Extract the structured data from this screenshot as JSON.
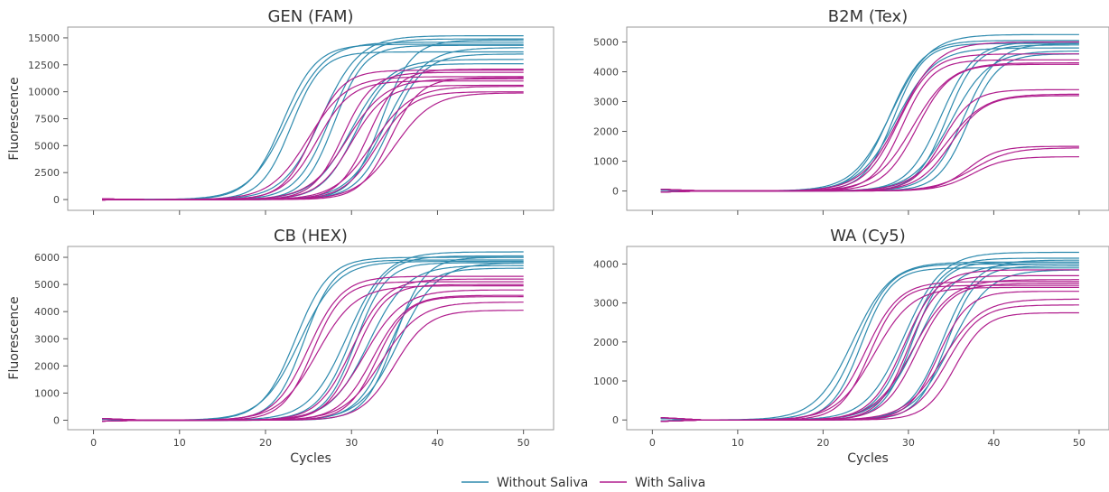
{
  "colors": {
    "without": "#2e8aae",
    "with": "#b01d8d"
  },
  "legend": {
    "without_label": "Without Saliva",
    "with_label": "With Saliva"
  },
  "chart_data": [
    {
      "type": "line",
      "title": "GEN (FAM)",
      "xlabel": "",
      "ylabel": "Fluorescence",
      "xlim": [
        1,
        50
      ],
      "ylim": [
        -1000,
        16000
      ],
      "xticks": [
        0,
        10,
        20,
        30,
        40,
        50
      ],
      "yticks": [
        0,
        2500,
        5000,
        7500,
        10000,
        12500,
        15000
      ],
      "show_xtick_labels": false,
      "series": [
        {
          "group": "without",
          "plateau": 14600,
          "midpoint": 22.5
        },
        {
          "group": "without",
          "plateau": 14400,
          "midpoint": 22.0
        },
        {
          "group": "without",
          "plateau": 13700,
          "midpoint": 23.0
        },
        {
          "group": "without",
          "plateau": 15200,
          "midpoint": 26.5
        },
        {
          "group": "without",
          "plateau": 14900,
          "midpoint": 27.5
        },
        {
          "group": "without",
          "plateau": 14300,
          "midpoint": 28.0
        },
        {
          "group": "without",
          "plateau": 13000,
          "midpoint": 30.0
        },
        {
          "group": "without",
          "plateau": 12600,
          "midpoint": 30.5
        },
        {
          "group": "without",
          "plateau": 14800,
          "midpoint": 33.5
        },
        {
          "group": "without",
          "plateau": 14100,
          "midpoint": 34.0
        },
        {
          "group": "without",
          "plateau": 13500,
          "midpoint": 34.5
        },
        {
          "group": "with",
          "plateau": 12000,
          "midpoint": 25.5
        },
        {
          "group": "with",
          "plateau": 11400,
          "midpoint": 25.0
        },
        {
          "group": "with",
          "plateau": 11000,
          "midpoint": 26.0
        },
        {
          "group": "with",
          "plateau": 11800,
          "midpoint": 29.0
        },
        {
          "group": "with",
          "plateau": 11200,
          "midpoint": 29.5
        },
        {
          "group": "with",
          "plateau": 10600,
          "midpoint": 30.0
        },
        {
          "group": "with",
          "plateau": 12100,
          "midpoint": 32.0
        },
        {
          "group": "with",
          "plateau": 10500,
          "midpoint": 32.5
        },
        {
          "group": "with",
          "plateau": 10000,
          "midpoint": 33.0
        },
        {
          "group": "with",
          "plateau": 11300,
          "midpoint": 34.5
        },
        {
          "group": "with",
          "plateau": 9900,
          "midpoint": 35.0
        }
      ]
    },
    {
      "type": "line",
      "title": "B2M (Tex)",
      "xlabel": "",
      "ylabel": "",
      "xlim": [
        1,
        50
      ],
      "ylim": [
        -650,
        5500
      ],
      "xticks": [
        0,
        10,
        20,
        30,
        40,
        50
      ],
      "yticks": [
        0,
        1000,
        2000,
        3000,
        4000,
        5000
      ],
      "show_xtick_labels": false,
      "series": [
        {
          "group": "without",
          "plateau": 5250,
          "midpoint": 28.0
        },
        {
          "group": "without",
          "plateau": 5050,
          "midpoint": 27.8
        },
        {
          "group": "without",
          "plateau": 4950,
          "midpoint": 28.3
        },
        {
          "group": "without",
          "plateau": 4800,
          "midpoint": 28.6
        },
        {
          "group": "without",
          "plateau": 5000,
          "midpoint": 33.8
        },
        {
          "group": "without",
          "plateau": 4900,
          "midpoint": 34.5
        },
        {
          "group": "without",
          "plateau": 4700,
          "midpoint": 35.0
        },
        {
          "group": "without",
          "plateau": 4950,
          "midpoint": 36.5
        },
        {
          "group": "without",
          "plateau": 4600,
          "midpoint": 37.0
        },
        {
          "group": "with",
          "plateau": 5000,
          "midpoint": 29.0
        },
        {
          "group": "with",
          "plateau": 4600,
          "midpoint": 28.8
        },
        {
          "group": "with",
          "plateau": 4400,
          "midpoint": 29.3
        },
        {
          "group": "with",
          "plateau": 4300,
          "midpoint": 30.5
        },
        {
          "group": "with",
          "plateau": 4250,
          "midpoint": 31.0
        },
        {
          "group": "with",
          "plateau": 3400,
          "midpoint": 34.0
        },
        {
          "group": "with",
          "plateau": 3250,
          "midpoint": 34.5
        },
        {
          "group": "with",
          "plateau": 3200,
          "midpoint": 35.0
        },
        {
          "group": "with",
          "plateau": 1500,
          "midpoint": 37.0
        },
        {
          "group": "with",
          "plateau": 1450,
          "midpoint": 37.5
        },
        {
          "group": "with",
          "plateau": 1150,
          "midpoint": 37.5
        }
      ]
    },
    {
      "type": "line",
      "title": "CB (HEX)",
      "xlabel": "Cycles",
      "ylabel": "Fluorescence",
      "xlim": [
        1,
        50
      ],
      "ylim": [
        -350,
        6400
      ],
      "xticks": [
        0,
        10,
        20,
        30,
        40,
        50
      ],
      "yticks": [
        0,
        1000,
        2000,
        3000,
        4000,
        5000,
        6000
      ],
      "show_xtick_labels": true,
      "series": [
        {
          "group": "without",
          "plateau": 5850,
          "midpoint": 24.0
        },
        {
          "group": "without",
          "plateau": 6000,
          "midpoint": 23.5
        },
        {
          "group": "without",
          "plateau": 5900,
          "midpoint": 24.5
        },
        {
          "group": "without",
          "plateau": 6200,
          "midpoint": 29.5
        },
        {
          "group": "without",
          "plateau": 6050,
          "midpoint": 30.0
        },
        {
          "group": "without",
          "plateau": 5800,
          "midpoint": 30.5
        },
        {
          "group": "without",
          "plateau": 5700,
          "midpoint": 32.0
        },
        {
          "group": "without",
          "plateau": 5600,
          "midpoint": 34.5
        },
        {
          "group": "without",
          "plateau": 6000,
          "midpoint": 35.0
        },
        {
          "group": "without",
          "plateau": 5800,
          "midpoint": 35.5
        },
        {
          "group": "with",
          "plateau": 5300,
          "midpoint": 25.0
        },
        {
          "group": "with",
          "plateau": 5100,
          "midpoint": 25.5
        },
        {
          "group": "with",
          "plateau": 4950,
          "midpoint": 26.0
        },
        {
          "group": "with",
          "plateau": 5200,
          "midpoint": 30.0
        },
        {
          "group": "with",
          "plateau": 5000,
          "midpoint": 30.5
        },
        {
          "group": "with",
          "plateau": 4800,
          "midpoint": 31.5
        },
        {
          "group": "with",
          "plateau": 4600,
          "midpoint": 32.5
        },
        {
          "group": "with",
          "plateau": 4550,
          "midpoint": 33.0
        },
        {
          "group": "with",
          "plateau": 4350,
          "midpoint": 33.5
        },
        {
          "group": "with",
          "plateau": 4050,
          "midpoint": 35.0
        }
      ]
    },
    {
      "type": "line",
      "title": "WA (Cy5)",
      "xlabel": "Cycles",
      "ylabel": "",
      "xlim": [
        1,
        50
      ],
      "ylim": [
        -250,
        4450
      ],
      "xticks": [
        0,
        10,
        20,
        30,
        40,
        50
      ],
      "yticks": [
        0,
        1000,
        2000,
        3000,
        4000
      ],
      "show_xtick_labels": true,
      "series": [
        {
          "group": "without",
          "plateau": 4050,
          "midpoint": 23.5
        },
        {
          "group": "without",
          "plateau": 4000,
          "midpoint": 24.0
        },
        {
          "group": "without",
          "plateau": 3900,
          "midpoint": 24.5
        },
        {
          "group": "without",
          "plateau": 4300,
          "midpoint": 29.5
        },
        {
          "group": "without",
          "plateau": 4150,
          "midpoint": 30.0
        },
        {
          "group": "without",
          "plateau": 4050,
          "midpoint": 30.5
        },
        {
          "group": "without",
          "plateau": 4000,
          "midpoint": 31.0
        },
        {
          "group": "without",
          "plateau": 4100,
          "midpoint": 34.0
        },
        {
          "group": "without",
          "plateau": 3950,
          "midpoint": 34.5
        },
        {
          "group": "without",
          "plateau": 3850,
          "midpoint": 35.0
        },
        {
          "group": "with",
          "plateau": 3550,
          "midpoint": 25.0
        },
        {
          "group": "with",
          "plateau": 3450,
          "midpoint": 25.5
        },
        {
          "group": "with",
          "plateau": 3400,
          "midpoint": 26.0
        },
        {
          "group": "with",
          "plateau": 3850,
          "midpoint": 29.5
        },
        {
          "group": "with",
          "plateau": 3700,
          "midpoint": 30.0
        },
        {
          "group": "with",
          "plateau": 3600,
          "midpoint": 30.5
        },
        {
          "group": "with",
          "plateau": 3500,
          "midpoint": 31.0
        },
        {
          "group": "with",
          "plateau": 3300,
          "midpoint": 33.5
        },
        {
          "group": "with",
          "plateau": 3100,
          "midpoint": 34.0
        },
        {
          "group": "with",
          "plateau": 2950,
          "midpoint": 34.5
        },
        {
          "group": "with",
          "plateau": 2750,
          "midpoint": 35.5
        }
      ]
    }
  ]
}
